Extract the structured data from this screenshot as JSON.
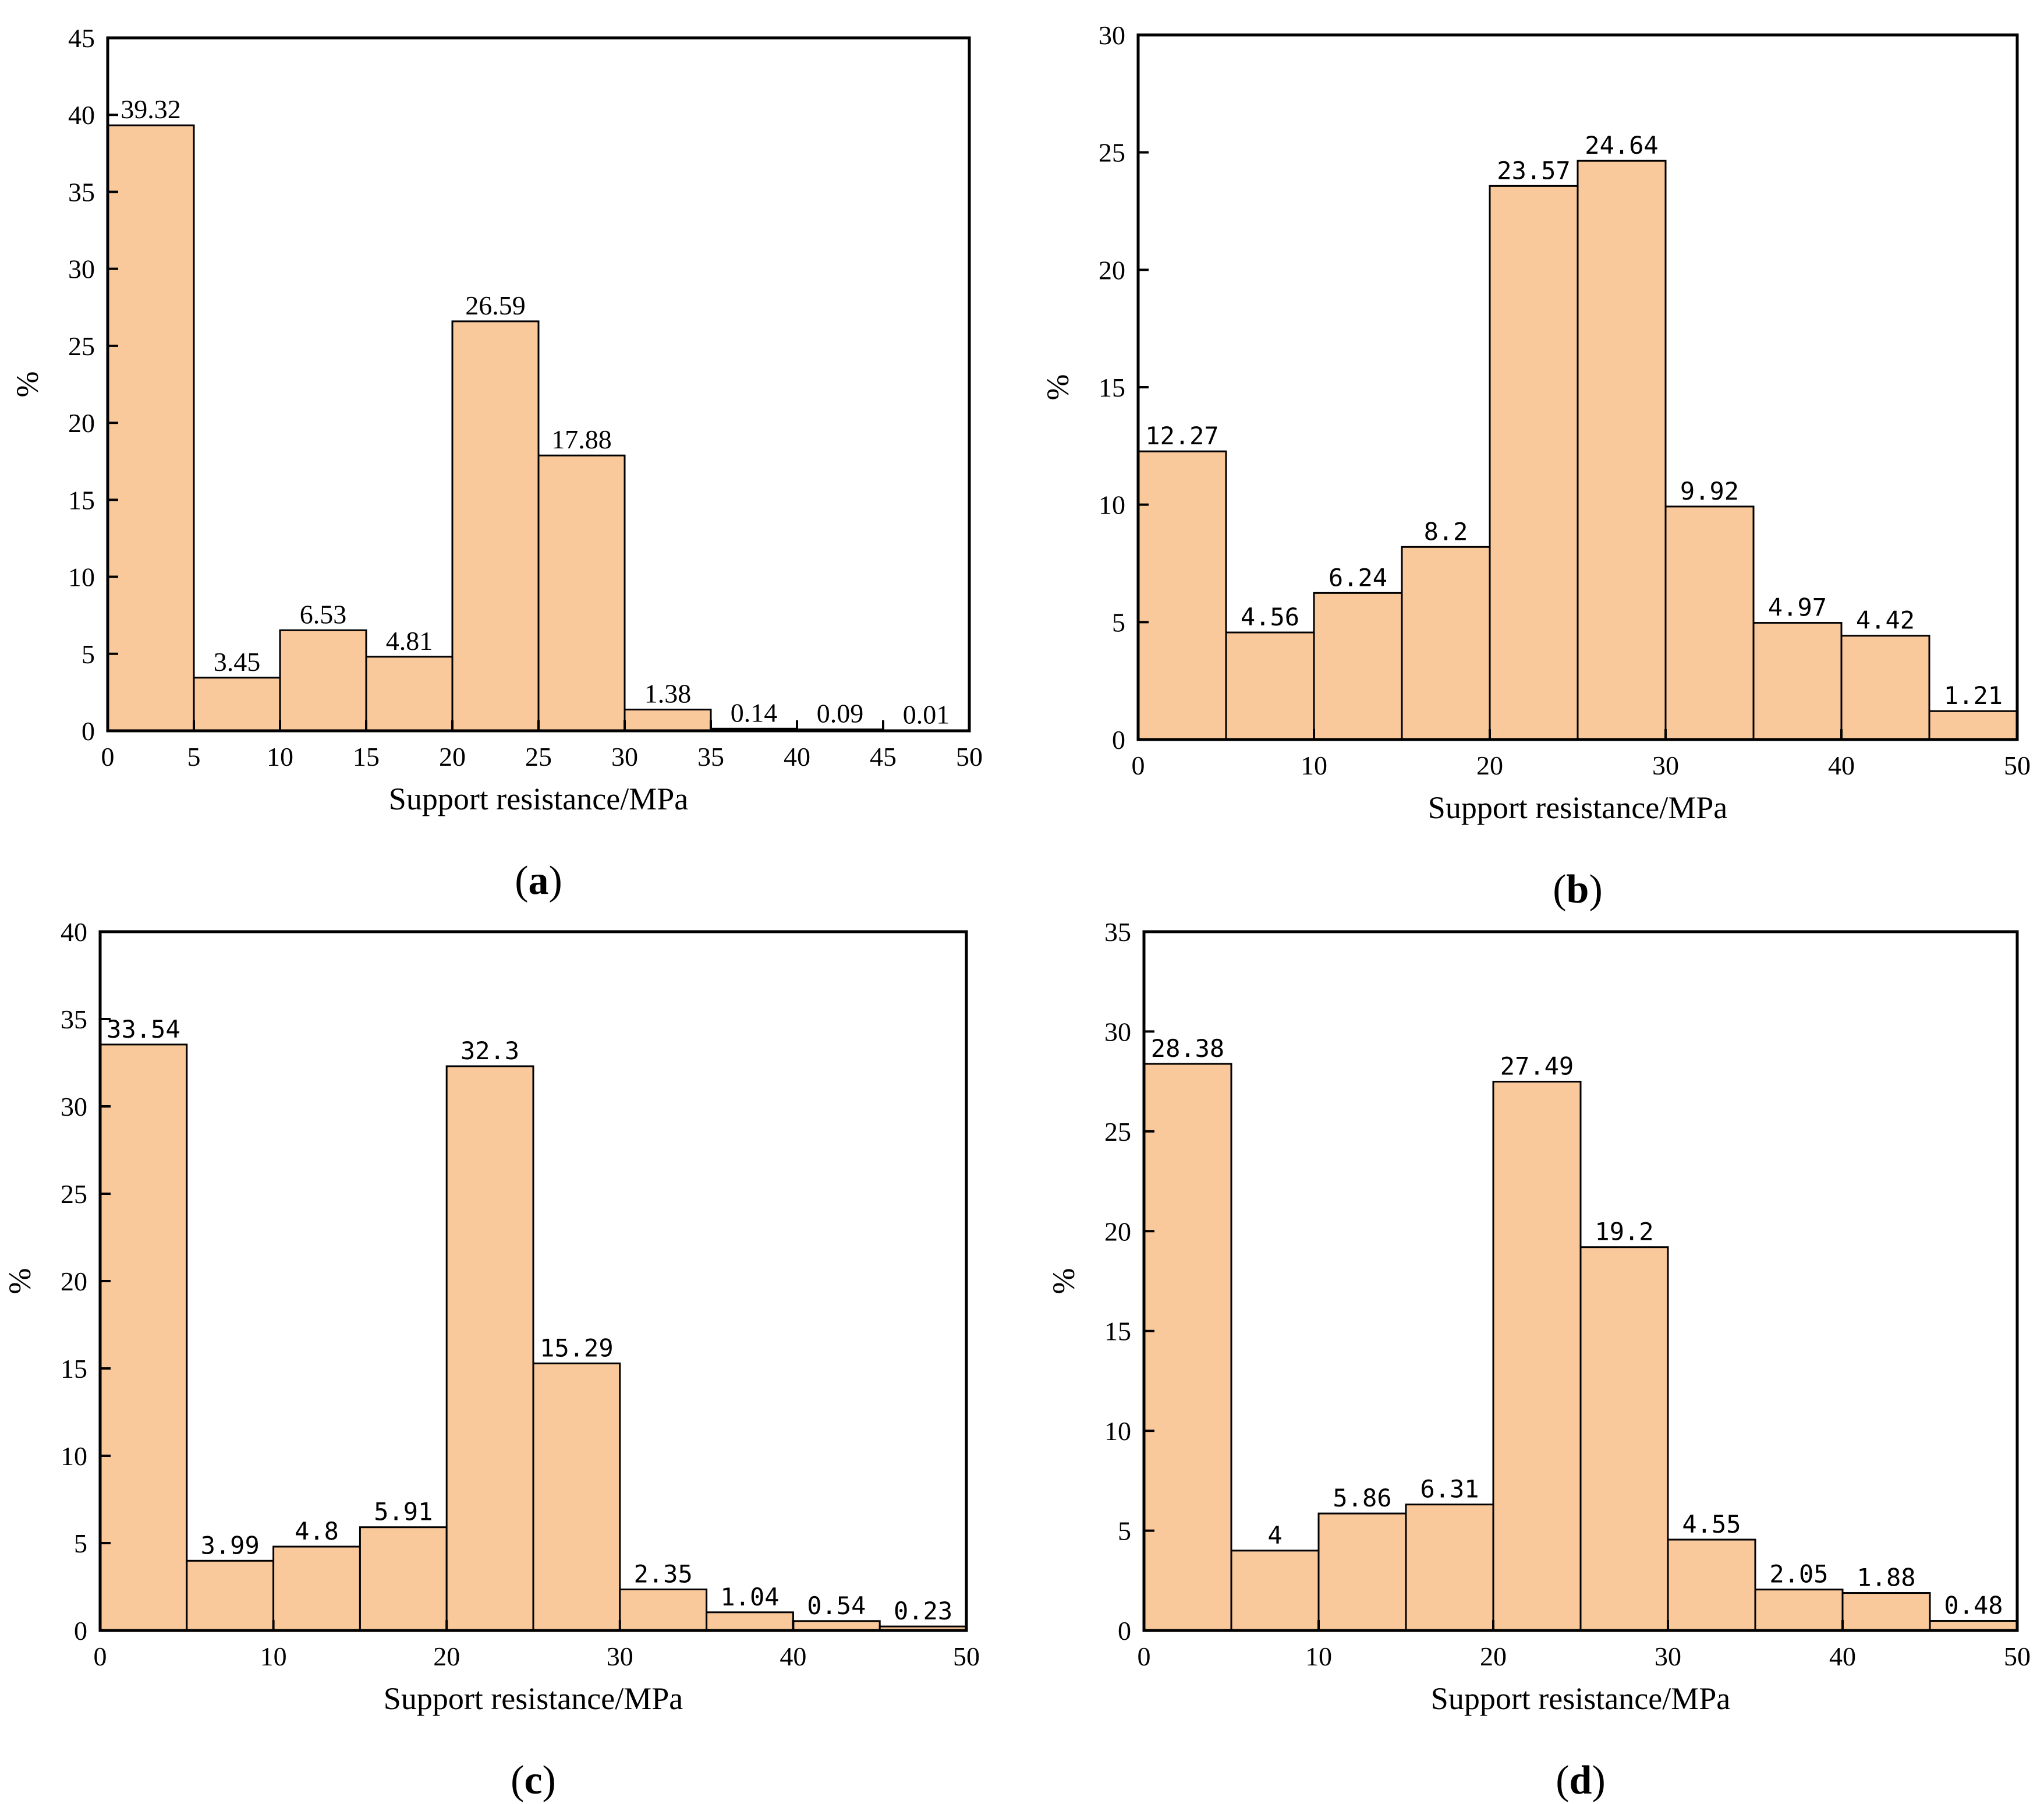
{
  "chart_data": [
    {
      "type": "bar",
      "panel_label": "a",
      "xlabel": "Support resistance/MPa",
      "ylabel": "%",
      "xlim": [
        0,
        50
      ],
      "ylim": [
        0,
        45
      ],
      "xticks": [
        0,
        5,
        10,
        15,
        20,
        25,
        30,
        35,
        40,
        45,
        50
      ],
      "yticks": [
        0,
        5,
        10,
        15,
        20,
        25,
        30,
        35,
        40,
        45
      ],
      "bin_edges": [
        0,
        5,
        10,
        15,
        20,
        25,
        30,
        35,
        40,
        45,
        50
      ],
      "values": [
        39.32,
        3.45,
        6.53,
        4.81,
        26.59,
        17.88,
        1.38,
        0.14,
        0.09,
        0.01
      ],
      "labels": [
        "39.32",
        "3.45",
        "6.53",
        "4.81",
        "26.59",
        "17.88",
        "1.38",
        "0.14",
        "0.09",
        "0.01"
      ],
      "bar_color": "#f9c89b",
      "label_style": "serif"
    },
    {
      "type": "bar",
      "panel_label": "b",
      "xlabel": "Support resistance/MPa",
      "ylabel": "%",
      "xlim": [
        0,
        50
      ],
      "ylim": [
        0,
        30
      ],
      "xticks": [
        0,
        10,
        20,
        30,
        40,
        50
      ],
      "yticks": [
        0,
        5,
        10,
        15,
        20,
        25,
        30
      ],
      "bin_edges": [
        0,
        5,
        10,
        15,
        20,
        25,
        30,
        35,
        40,
        45,
        50
      ],
      "values": [
        12.27,
        4.56,
        6.24,
        8.2,
        23.57,
        24.64,
        9.92,
        4.97,
        4.42,
        1.21
      ],
      "labels": [
        "12.27",
        "4.56",
        "6.24",
        "8.2",
        "23.57",
        "24.64",
        "9.92",
        "4.97",
        "4.42",
        "1.21"
      ],
      "bar_color": "#f9c89b",
      "label_style": "mono"
    },
    {
      "type": "bar",
      "panel_label": "c",
      "xlabel": "Support resistance/MPa",
      "ylabel": "%",
      "xlim": [
        0,
        50
      ],
      "ylim": [
        0,
        40
      ],
      "xticks": [
        0,
        10,
        20,
        30,
        40,
        50
      ],
      "yticks": [
        0,
        5,
        10,
        15,
        20,
        25,
        30,
        35,
        40
      ],
      "bin_edges": [
        0,
        5,
        10,
        15,
        20,
        25,
        30,
        35,
        40,
        45,
        50
      ],
      "values": [
        33.54,
        3.99,
        4.8,
        5.91,
        32.3,
        15.29,
        2.35,
        1.04,
        0.54,
        0.23
      ],
      "labels": [
        "33.54",
        "3.99",
        "4.8",
        "5.91",
        "32.3",
        "15.29",
        "2.35",
        "1.04",
        "0.54",
        "0.23"
      ],
      "bar_color": "#f9c89b",
      "label_style": "mono"
    },
    {
      "type": "bar",
      "panel_label": "d",
      "xlabel": "Support resistance/MPa",
      "ylabel": "%",
      "xlim": [
        0,
        50
      ],
      "ylim": [
        0,
        35
      ],
      "xticks": [
        0,
        10,
        20,
        30,
        40,
        50
      ],
      "yticks": [
        0,
        5,
        10,
        15,
        20,
        25,
        30,
        35
      ],
      "bin_edges": [
        0,
        5,
        10,
        15,
        20,
        25,
        30,
        35,
        40,
        45,
        50
      ],
      "values": [
        28.38,
        4,
        5.86,
        6.31,
        27.49,
        19.2,
        4.55,
        2.05,
        1.88,
        0.48
      ],
      "labels": [
        "28.38",
        "4",
        "5.86",
        "6.31",
        "27.49",
        "19.2",
        "4.55",
        "2.05",
        "1.88",
        "0.48"
      ],
      "bar_color": "#f9c89b",
      "label_style": "mono"
    }
  ]
}
